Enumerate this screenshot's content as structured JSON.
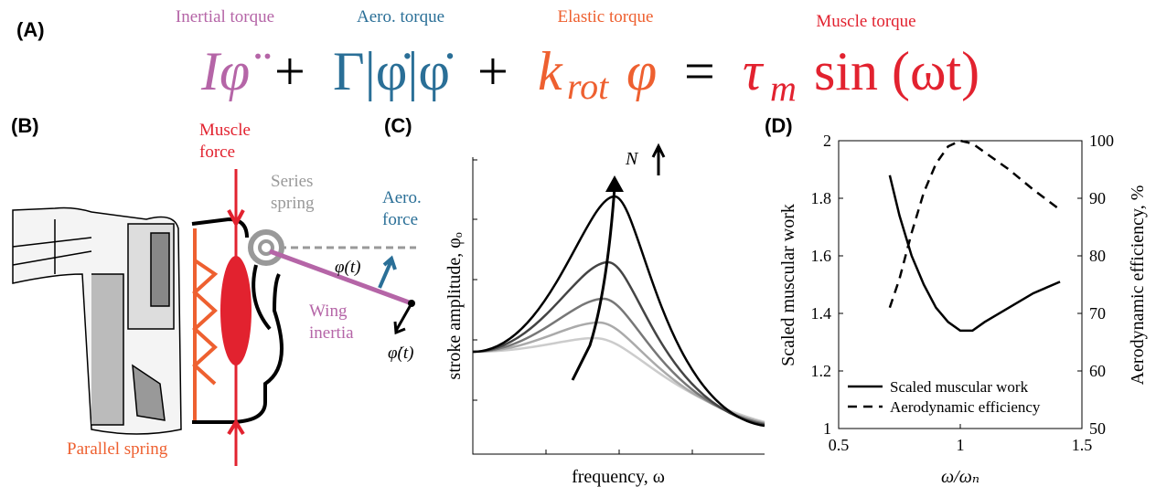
{
  "panel_labels": [
    "(A)",
    "(B)",
    "(C)",
    "(D)"
  ],
  "equation": {
    "term_labels": [
      "Inertial torque",
      "Aero. torque",
      "Elastic torque",
      "Muscle torque"
    ],
    "inertial": "Iφ̈",
    "plus1": "+",
    "aero": "Γ|φ̇|φ̇",
    "plus2": "+",
    "elastic_k": "k",
    "elastic_sub": "rot",
    "elastic_phi": "φ",
    "equals": "=",
    "muscle_tau": "τ",
    "muscle_sub": "m",
    "muscle_sin": "sin (ωt)"
  },
  "diagram": {
    "muscle_force": [
      "Muscle",
      "force"
    ],
    "series_spring": [
      "Series",
      "spring"
    ],
    "aero_force": [
      "Aero.",
      "force"
    ],
    "angle": "φ(t)",
    "wing_inertia": [
      "Wing",
      "inertia"
    ],
    "angular_velocity": "φ̇(t)",
    "parallel_spring": "Parallel spring"
  },
  "resonance": {
    "ylabel": "stroke amplitude, φₒ",
    "xlabel": "frequency, ω",
    "arrow_label": "N"
  },
  "chart_data": {
    "type": "line",
    "xlabel": "ω/ωₙ",
    "ylabel": "Scaled muscular work",
    "y2label": "Aerodynamic efficiency, %",
    "x": [
      0.71,
      0.75,
      0.8,
      0.85,
      0.9,
      0.95,
      1.0,
      1.05,
      1.1,
      1.2,
      1.3,
      1.41
    ],
    "series": [
      {
        "name": "Scaled muscular work",
        "color": "#000000",
        "dash": false,
        "values": [
          1.88,
          1.74,
          1.6,
          1.5,
          1.42,
          1.37,
          1.34,
          1.34,
          1.37,
          1.42,
          1.47,
          1.51
        ]
      },
      {
        "name": "Aerodynamic efficiency",
        "color": "#000000",
        "dash": true,
        "axis": "y2",
        "values": [
          71,
          76,
          84,
          91,
          96,
          99,
          100,
          99.5,
          98,
          95,
          91.5,
          88
        ]
      }
    ],
    "xlim": [
      0.5,
      1.5
    ],
    "xticks": [
      0.5,
      1,
      1.5
    ],
    "ylim": [
      1,
      2
    ],
    "yticks": [
      1,
      1.2,
      1.4,
      1.6,
      1.8,
      2
    ],
    "y2lim": [
      50,
      100
    ],
    "y2ticks": [
      50,
      60,
      70,
      80,
      90,
      100
    ],
    "legend": "lower-left"
  }
}
